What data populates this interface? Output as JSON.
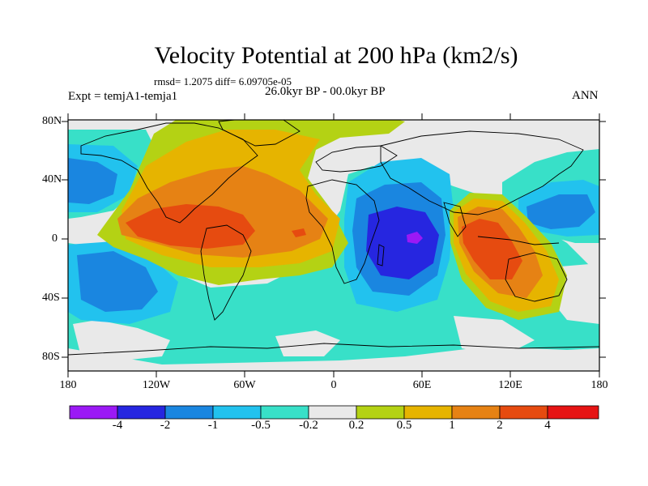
{
  "figure": {
    "title": "Velocity Potential at 200 hPa (km2/s)",
    "stats": "rmsd= 1.2075 diff= 6.09705e-05",
    "experiment": "Expt = temjA1-temja1",
    "period": "26.0kyr BP - 00.0kyr BP",
    "season": "ANN"
  },
  "axes": {
    "x_ticks": [
      "180",
      "120W",
      "60W",
      "0",
      "60E",
      "120E",
      "180"
    ],
    "y_ticks": [
      "80N",
      "40N",
      "0",
      "40S",
      "80S"
    ]
  },
  "colorbar": {
    "labels": [
      "-4",
      "-2",
      "-1",
      "-0.5",
      "-0.2",
      "0.2",
      "0.5",
      "1",
      "2",
      "4"
    ],
    "colors": [
      "#9b19f5",
      "#2626e0",
      "#1a86e0",
      "#22c2ee",
      "#38e0c8",
      "#e9e9e9",
      "#b4d214",
      "#e6b400",
      "#e68214",
      "#e64b10",
      "#e61414"
    ]
  },
  "palette": {
    "neg4": "#9b19f5",
    "neg3": "#2626e0",
    "neg2": "#1a86e0",
    "neg1": "#22c2ee",
    "neg0": "#38e0c8",
    "zero": "#e9e9e9",
    "pos0": "#b4d214",
    "pos1": "#e6b400",
    "pos2": "#e68214",
    "pos3": "#e64b10"
  }
}
